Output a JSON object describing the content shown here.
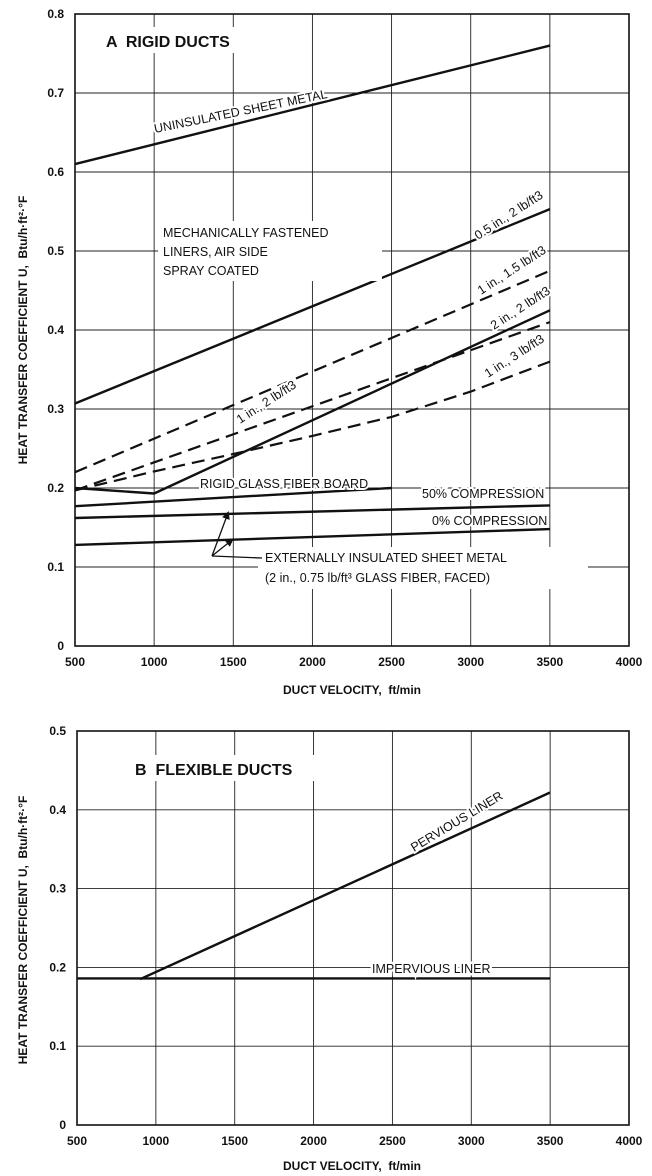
{
  "chart_data": [
    {
      "type": "line",
      "title": "A  RIGID DUCTS",
      "xlabel": "DUCT VELOCITY,  ft/min",
      "ylabel": "HEAT TRANSFER COEFFICIENT U,  Btu/h·ft²·°F",
      "xlim": [
        500,
        4000
      ],
      "ylim": [
        0,
        0.8
      ],
      "xticks": [
        "500",
        "1000",
        "1500",
        "2000",
        "2500",
        "3000",
        "3500",
        "4000"
      ],
      "yticks": [
        "0",
        "0.1",
        "0.2",
        "0.3",
        "0.4",
        "0.5",
        "0.6",
        "0.7",
        "0.8"
      ],
      "grid": true,
      "series": [
        {
          "name": "UNINSULATED SHEET METAL",
          "style": "solid",
          "x": [
            500,
            3500
          ],
          "y": [
            0.61,
            0.76
          ]
        },
        {
          "name": "0.5 in., 2 lb/ft3",
          "style": "solid",
          "x": [
            500,
            3500
          ],
          "y": [
            0.307,
            0.553
          ]
        },
        {
          "name": "1 in., 1.5 lb/ft3",
          "style": "dashed",
          "x": [
            500,
            3500
          ],
          "y": [
            0.22,
            0.475
          ]
        },
        {
          "name": "2 in., 2 lb/ft3",
          "style": "solid",
          "x": [
            500,
            1000,
            3500
          ],
          "y": [
            0.2,
            0.193,
            0.425
          ]
        },
        {
          "name": "1 in., 2 lb/ft3",
          "style": "dashed",
          "x": [
            500,
            3500
          ],
          "y": [
            0.197,
            0.41
          ]
        },
        {
          "name": "1 in., 3 lb/ft3",
          "style": "dashed",
          "x": [
            500,
            1000,
            1500,
            2000,
            2500,
            3000,
            3500
          ],
          "y": [
            0.197,
            0.221,
            0.243,
            0.266,
            0.29,
            0.322,
            0.36
          ]
        },
        {
          "name": "RIGID GLASS FIBER BOARD",
          "style": "solid",
          "x": [
            500,
            2500
          ],
          "y": [
            0.177,
            0.2
          ]
        },
        {
          "name": "50% COMPRESSION",
          "style": "solid",
          "x": [
            500,
            3500
          ],
          "y": [
            0.162,
            0.178
          ]
        },
        {
          "name": "0% COMPRESSION",
          "style": "solid",
          "x": [
            500,
            3500
          ],
          "y": [
            0.128,
            0.148
          ]
        }
      ],
      "annotations": [
        "MECHANICALLY FASTENED",
        "LINERS, AIR SIDE",
        "SPRAY COATED",
        "EXTERNALLY INSULATED SHEET METAL",
        "(2 in., 0.75 lb/ft³ GLASS FIBER, FACED)"
      ]
    },
    {
      "type": "line",
      "title": "B  FLEXIBLE DUCTS",
      "xlabel": "DUCT VELOCITY,  ft/min",
      "ylabel": "HEAT TRANSFER COEFFICIENT U,  Btu/h·ft²·°F",
      "xlim": [
        500,
        4000
      ],
      "ylim": [
        0,
        0.5
      ],
      "xticks": [
        "500",
        "1000",
        "1500",
        "2000",
        "2500",
        "3000",
        "3500",
        "4000"
      ],
      "yticks": [
        "0",
        "0.1",
        "0.2",
        "0.3",
        "0.4",
        "0.5"
      ],
      "grid": true,
      "series": [
        {
          "name": "PERVIOUS LINER",
          "style": "solid",
          "x": [
            900,
            3500
          ],
          "y": [
            0.185,
            0.422
          ]
        },
        {
          "name": "IMPERVIOUS LINER",
          "style": "solid",
          "x": [
            500,
            3500
          ],
          "y": [
            0.186,
            0.186
          ]
        }
      ]
    }
  ]
}
